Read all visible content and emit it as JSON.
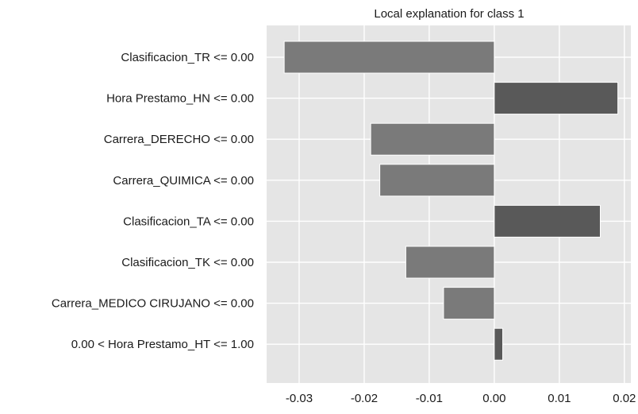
{
  "chart_data": {
    "type": "bar",
    "orientation": "horizontal",
    "title": "Local explanation for class 1",
    "xlabel": "",
    "ylabel": "",
    "xlim": [
      -0.035,
      0.021
    ],
    "xticks": [
      -0.03,
      -0.02,
      -0.01,
      0.0,
      0.01,
      0.02
    ],
    "xtick_labels": [
      "-0.03",
      "-0.02",
      "-0.01",
      "0.00",
      "0.01",
      "0.02"
    ],
    "grid": true,
    "categories": [
      "Clasificacion_TR <= 0.00",
      "Hora Prestamo_HN <= 0.00",
      "Carrera_DERECHO <= 0.00",
      "Carrera_QUIMICA <= 0.00",
      "Clasificacion_TA <= 0.00",
      "Clasificacion_TK <= 0.00",
      "Carrera_MEDICO CIRUJANO <= 0.00",
      "0.00 < Hora Prestamo_HT <= 1.00"
    ],
    "values": [
      -0.0323,
      0.019,
      -0.019,
      -0.0176,
      0.0163,
      -0.0136,
      -0.0078,
      0.0013
    ],
    "colors": {
      "negative": "#7a7a7a",
      "positive": "#595959",
      "background": "#e5e5e5",
      "grid": "#ffffff"
    }
  }
}
